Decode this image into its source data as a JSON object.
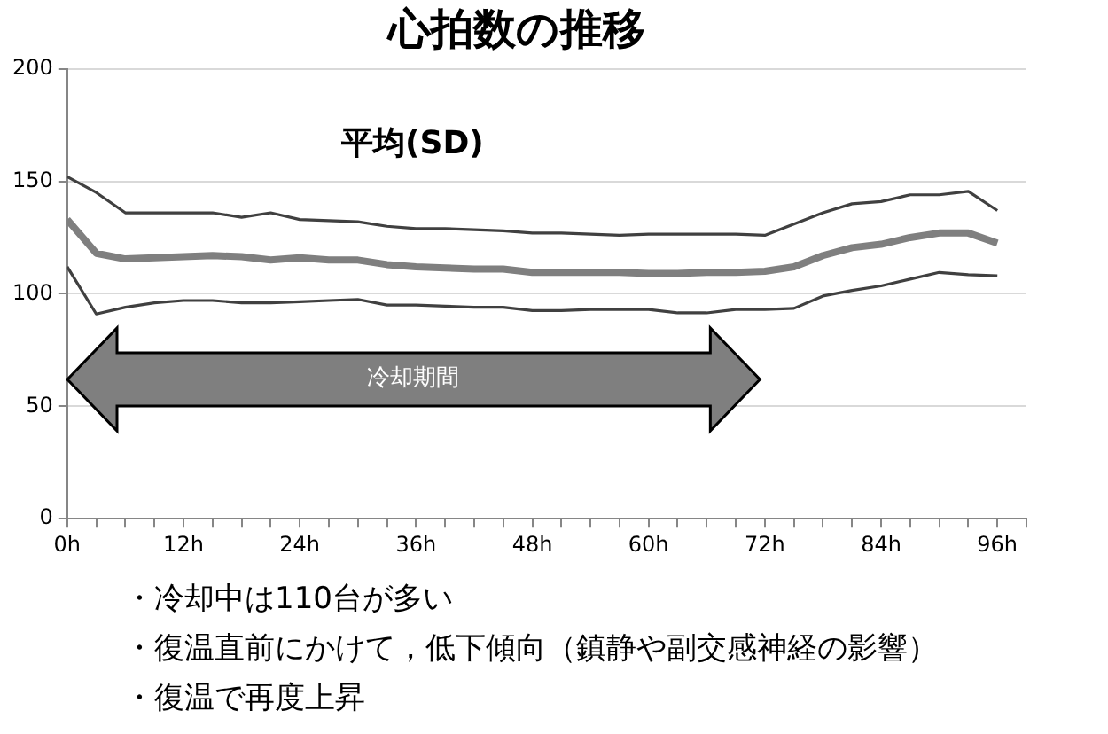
{
  "chart_data": {
    "type": "line",
    "title": "心拍数の推移",
    "x": [
      0,
      3,
      6,
      9,
      12,
      15,
      18,
      21,
      24,
      27,
      30,
      33,
      36,
      39,
      42,
      45,
      48,
      51,
      54,
      57,
      60,
      63,
      66,
      69,
      72,
      75,
      78,
      81,
      84,
      87,
      90,
      93,
      96
    ],
    "series": [
      {
        "color": "#404040",
        "values": [
          152,
          145,
          136,
          136,
          136,
          136,
          134,
          136,
          133,
          132.5,
          132,
          130,
          129,
          129,
          128.5,
          128,
          127,
          127,
          126.5,
          126,
          126.5,
          126.5,
          126.5,
          126.5,
          126,
          131,
          136,
          140,
          141,
          144,
          144,
          145.5,
          137
        ]
      },
      {
        "color": "#7f7f7f",
        "values": [
          133,
          118,
          115.5,
          116,
          116.5,
          117,
          116.5,
          115,
          116,
          115,
          115,
          113,
          112,
          111.5,
          111,
          111,
          109.5,
          109.5,
          109.5,
          109.5,
          109,
          109,
          109.5,
          109.5,
          110,
          112,
          117,
          120.5,
          122,
          125,
          127,
          127,
          122.5
        ]
      },
      {
        "color": "#404040",
        "values": [
          112,
          91,
          94,
          96,
          97,
          97,
          96,
          96,
          96.5,
          97,
          97.5,
          95,
          95,
          94.5,
          94,
          94,
          92.5,
          92.5,
          93,
          93,
          93,
          91.5,
          91.5,
          93,
          93,
          93.5,
          99,
          101.5,
          103.5,
          106.5,
          109.5,
          108.5,
          108
        ]
      }
    ],
    "xlim": [
      0,
      99
    ],
    "xticks": [
      {
        "value": 0,
        "label": "0h"
      },
      {
        "value": 3,
        "label": null
      },
      {
        "value": 6,
        "label": null
      },
      {
        "value": 9,
        "label": null
      },
      {
        "value": 12,
        "label": "12h"
      },
      {
        "value": 15,
        "label": null
      },
      {
        "value": 18,
        "label": null
      },
      {
        "value": 21,
        "label": null
      },
      {
        "value": 24,
        "label": "24h"
      },
      {
        "value": 27,
        "label": null
      },
      {
        "value": 30,
        "label": null
      },
      {
        "value": 33,
        "label": null
      },
      {
        "value": 36,
        "label": "36h"
      },
      {
        "value": 39,
        "label": null
      },
      {
        "value": 42,
        "label": null
      },
      {
        "value": 45,
        "label": null
      },
      {
        "value": 48,
        "label": "48h"
      },
      {
        "value": 51,
        "label": null
      },
      {
        "value": 54,
        "label": null
      },
      {
        "value": 57,
        "label": null
      },
      {
        "value": 60,
        "label": "60h"
      },
      {
        "value": 63,
        "label": null
      },
      {
        "value": 66,
        "label": null
      },
      {
        "value": 69,
        "label": null
      },
      {
        "value": 72,
        "label": "72h"
      },
      {
        "value": 75,
        "label": null
      },
      {
        "value": 78,
        "label": null
      },
      {
        "value": 81,
        "label": null
      },
      {
        "value": 84,
        "label": "84h"
      },
      {
        "value": 87,
        "label": null
      },
      {
        "value": 90,
        "label": null
      },
      {
        "value": 93,
        "label": null
      },
      {
        "value": 96,
        "label": "96h"
      },
      {
        "value": 99,
        "label": null
      }
    ],
    "ylim": [
      0,
      200
    ],
    "yticks": [
      0,
      50,
      100,
      150,
      200
    ],
    "grid": "y",
    "legend": false,
    "marker": "none",
    "line_style": "solid",
    "annotations": [
      "平均(SD)",
      "冷却期間",
      "・冷却中は110台が多い",
      "・復温直前にかけて，低下傾向（鎮静や副交感神経の影響）",
      "・復温で再度上昇"
    ]
  }
}
